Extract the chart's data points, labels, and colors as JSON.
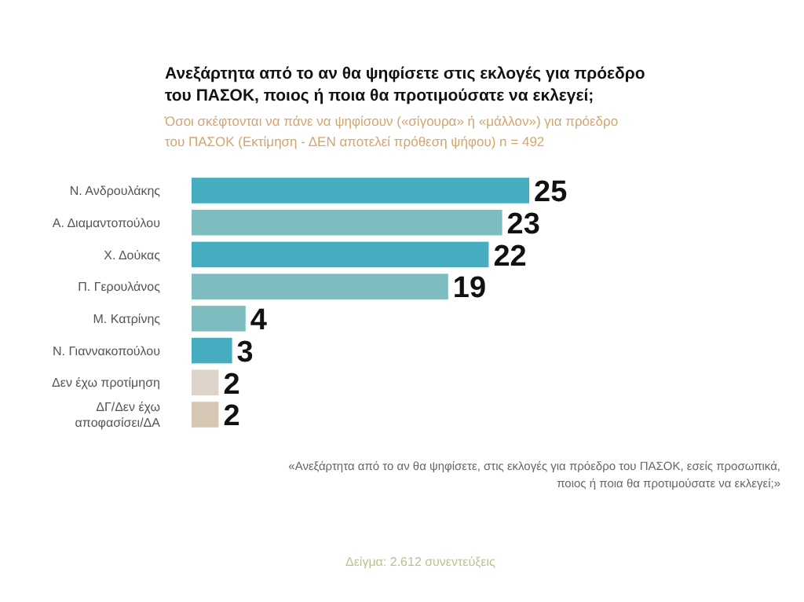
{
  "chart_data": {
    "type": "bar",
    "orientation": "horizontal",
    "title": "Ανεξάρτητα από το αν θα ψηφίσετε στις εκλογές για πρόεδρο\nτου ΠΑΣΟΚ, ποιος ή ποια θα προτιμούσατε να εκλεγεί;",
    "subtitle": "Όσοι σκέφτονται να πάνε να ψηφίσουν («σίγουρα» ή «μάλλον») για πρόεδρο\nτου ΠΑΣΟΚ   (Εκτίμηση - ΔΕΝ αποτελεί πρόθεση ψήφου)   n = 492",
    "categories": [
      "Ν. Ανδρουλάκης",
      "Α. Διαμαντοπούλου",
      "Χ. Δούκας",
      "Π. Γερουλάνος",
      "Μ. Κατρίνης",
      "Ν. Γιαννακοπούλου",
      "Δεν έχω προτίμηση",
      "ΔΓ/Δεν έχω\nαποφασίσει/ΔΑ"
    ],
    "values": [
      25,
      23,
      22,
      19,
      4,
      3,
      2,
      2
    ],
    "colors": [
      "#46adc0",
      "#7dbdc0",
      "#46adc0",
      "#7dbdc0",
      "#7dbdc0",
      "#46adc0",
      "#ddd3c8",
      "#d6c6b4"
    ],
    "data_labels": true,
    "annotations": [
      "«Ανεξάρτητα από το αν θα ψηφίσετε, στις εκλογές για πρόεδρο του ΠΑΣΟΚ, εσείς προσωπικά,\nποιος ή ποια θα προτιμούσατε να εκλεγεί;»",
      "Δείγμα: 2.612 συνεντεύξεις"
    ]
  }
}
